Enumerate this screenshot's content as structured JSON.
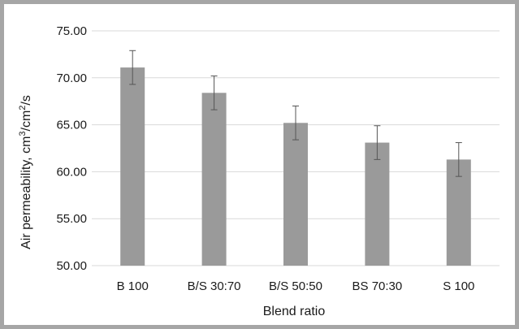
{
  "chart_data": {
    "type": "bar",
    "title": "",
    "xlabel": "Blend ratio",
    "ylabel_main": "Air permeability, cm",
    "ylabel_sup1": "3",
    "ylabel_mid": "/cm",
    "ylabel_sup2": "2",
    "ylabel_end": "/s",
    "categories": [
      "B 100",
      "B/S 30:70",
      "B/S 50:50",
      "BS 70:30",
      "S 100"
    ],
    "values": [
      71.1,
      68.4,
      65.2,
      63.1,
      61.3
    ],
    "errors": [
      1.8,
      1.8,
      1.8,
      1.8,
      1.8
    ],
    "ylim": [
      50,
      75
    ],
    "yticks": [
      50,
      55,
      60,
      65,
      70,
      75
    ],
    "ytick_labels": [
      "50.00",
      "55.00",
      "60.00",
      "65.00",
      "70.00",
      "75.00"
    ],
    "grid": "horizontal",
    "legend": "none",
    "colors": {
      "bar": "#9a9a9a",
      "grid": "#d9d9d9",
      "error": "#555555"
    }
  }
}
